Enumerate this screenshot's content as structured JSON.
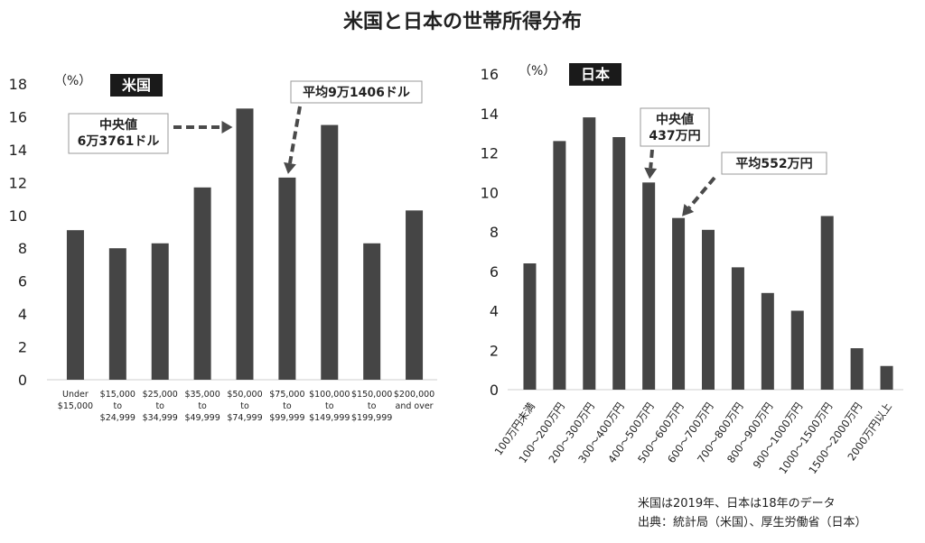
{
  "title": "米国と日本の世帯所得分布",
  "colors": {
    "bar": "#454545",
    "text": "#222222",
    "label_bg": "#1a1a1a",
    "label_text": "#ffffff",
    "arrow": "#4a4a4a"
  },
  "footer": {
    "line1": "米国は2019年、日本は18年のデータ",
    "line2": "出典：統計局（米国）、厚生労働省（日本）"
  },
  "chart_data": [
    {
      "type": "bar",
      "country_label": "米国",
      "unit_label": "（%）",
      "ylim": [
        0,
        18
      ],
      "yticks": [
        0,
        2,
        4,
        6,
        8,
        10,
        12,
        14,
        16,
        18
      ],
      "categories": [
        [
          "Under",
          "$15,000"
        ],
        [
          "$15,000",
          "to",
          "$24,999"
        ],
        [
          "$25,000",
          "to",
          "$34,999"
        ],
        [
          "$35,000",
          "to",
          "$49,999"
        ],
        [
          "$50,000",
          "to",
          "$74,999"
        ],
        [
          "$75,000",
          "to",
          "$99,999"
        ],
        [
          "$100,000",
          "to",
          "$149,999"
        ],
        [
          "$150,000",
          "to",
          "$199,999"
        ],
        [
          "$200,000",
          "and over"
        ]
      ],
      "values": [
        9.1,
        8.0,
        8.3,
        11.7,
        16.5,
        12.3,
        15.5,
        8.3,
        10.3
      ],
      "annotations": [
        {
          "text": [
            "中央値",
            "6万3761ドル"
          ],
          "target_index": 4,
          "direction": "horizontal"
        },
        {
          "text": [
            "平均9万1406ドル"
          ],
          "target_index": 5,
          "direction": "down"
        }
      ]
    },
    {
      "type": "bar",
      "country_label": "日本",
      "unit_label": "（%）",
      "ylim": [
        0,
        16
      ],
      "yticks": [
        0,
        2,
        4,
        6,
        8,
        10,
        12,
        14,
        16
      ],
      "categories": [
        "100万円未満",
        "100～200万円",
        "200～300万円",
        "300～400万円",
        "400～500万円",
        "500～600万円",
        "600～700万円",
        "700～800万円",
        "800～900万円",
        "900～1000万円",
        "1000～1500万円",
        "1500～2000万円",
        "2000万円以上"
      ],
      "values": [
        6.4,
        12.6,
        13.8,
        12.8,
        10.5,
        8.7,
        8.1,
        6.2,
        4.9,
        4.0,
        8.8,
        2.1,
        1.2
      ],
      "annotations": [
        {
          "text": [
            "中央値",
            "437万円"
          ],
          "target_index": 4,
          "direction": "down"
        },
        {
          "text": [
            "平均552万円"
          ],
          "target_index": 5,
          "direction": "down-left"
        }
      ]
    }
  ]
}
